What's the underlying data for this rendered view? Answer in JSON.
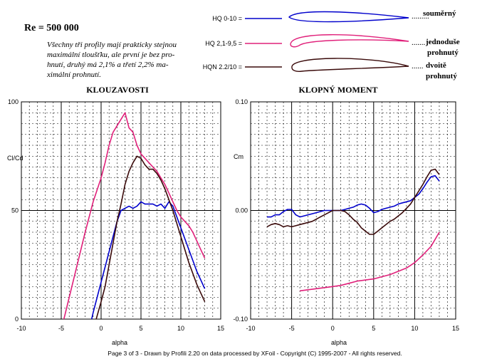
{
  "header": {
    "reynolds": "Re = 500 000",
    "note_lines": [
      "Všechny tři profily mají prakticky stejnou",
      "maximální tloušťku, ale první je bez pro-",
      "hnutí, druhý má 2,1% a třetí 2,2% ma-",
      "ximální prohnutí."
    ]
  },
  "legend": [
    {
      "label": "HQ 0-10 =",
      "color": "#0000cc",
      "desc_lines": [
        "souměrný"
      ]
    },
    {
      "label": "HQ 2,1-9,5 =",
      "color": "#e0207a",
      "desc_lines": [
        "jednoduše",
        "prohnutý"
      ]
    },
    {
      "label": "HQN 2.2/10 =",
      "color": "#3a0a0a",
      "desc_lines": [
        "dvoitě",
        "prohnutý"
      ]
    }
  ],
  "footer": "Page 3 of 3   -   Drawn by Profili 2.20 on data processed by  XFoil - Copyright (C) 1995-2007 - All rights reserved.",
  "chart_data": [
    {
      "type": "line",
      "title": "KLOUZAVOSTI",
      "xlabel": "alpha",
      "ylabel": "Cl/Cd",
      "xlim": [
        -10,
        15
      ],
      "ylim": [
        0,
        100
      ],
      "xticks": [
        "-10",
        "-5",
        "0",
        "5",
        "10",
        "15"
      ],
      "yticks": [
        "0",
        "50",
        "100"
      ],
      "grid": true,
      "series": [
        {
          "color": "#0000cc",
          "x": [
            -1.5,
            -1,
            -0.5,
            0,
            0.5,
            1,
            1.5,
            2,
            2.5,
            3,
            3.5,
            4,
            4.5,
            5,
            5.5,
            6,
            6.5,
            7,
            7.5,
            8,
            8.5,
            9,
            9.5,
            10,
            10.5,
            11,
            11.5,
            12,
            12.5,
            13
          ],
          "y": [
            -5,
            3,
            10,
            17,
            24,
            31,
            38,
            45,
            50,
            51,
            52,
            51,
            52,
            54,
            53,
            53,
            53,
            52,
            53,
            51,
            54,
            52,
            47,
            42,
            37,
            32,
            27,
            22,
            18,
            14
          ]
        },
        {
          "color": "#e0207a",
          "x": [
            -5,
            -4,
            -3,
            -2,
            -1,
            0,
            0.5,
            1,
            1.5,
            2,
            2.5,
            3,
            3.5,
            4,
            4.5,
            5,
            5.5,
            6,
            6.5,
            7,
            7.5,
            8,
            8.5,
            9,
            9.5,
            10,
            10.5,
            11,
            11.5,
            12,
            12.5,
            13
          ],
          "y": [
            -5,
            10,
            25,
            40,
            54,
            65,
            72,
            80,
            86,
            89,
            92,
            95,
            88,
            86,
            80,
            76,
            74,
            72,
            70,
            68,
            65,
            62,
            58,
            54,
            50,
            47,
            45,
            43,
            40,
            36,
            32,
            28
          ]
        },
        {
          "color": "#3a0a0a",
          "x": [
            -1,
            0,
            0.5,
            1,
            1.5,
            2,
            2.5,
            3,
            3.5,
            4,
            4.5,
            5,
            5.5,
            6,
            6.5,
            7,
            7.5,
            8,
            8.5,
            9,
            9.5,
            10,
            10.5,
            11,
            11.5,
            12,
            12.5,
            13
          ],
          "y": [
            -5,
            8,
            15,
            25,
            35,
            45,
            53,
            62,
            68,
            72,
            75,
            74,
            71,
            69,
            69,
            67,
            64,
            60,
            55,
            50,
            44,
            38,
            32,
            26,
            21,
            16,
            12,
            8
          ]
        }
      ]
    },
    {
      "type": "line",
      "title": "KLOPNÝ  MOMENT",
      "xlabel": "alpha",
      "ylabel": "Cm",
      "xlim": [
        -10,
        15
      ],
      "ylim": [
        -0.1,
        0.1
      ],
      "xticks": [
        "-10",
        "-5",
        "0",
        "5",
        "10",
        "15"
      ],
      "yticks": [
        "-0.10",
        "0.00",
        "0.10"
      ],
      "grid": true,
      "series": [
        {
          "color": "#0000cc",
          "x": [
            -8,
            -7.5,
            -7,
            -6.5,
            -6,
            -5.5,
            -5,
            -4.5,
            -4,
            -3.5,
            -3,
            -2.5,
            -2,
            -1.5,
            -1,
            -0.5,
            0,
            0.5,
            1,
            1.5,
            2,
            2.5,
            3,
            3.5,
            4,
            4.5,
            5,
            5.5,
            6,
            6.5,
            7,
            7.5,
            8,
            8.5,
            9,
            9.5,
            10,
            10.5,
            11,
            11.5,
            12,
            12.5,
            13
          ],
          "y": [
            -0.006,
            -0.006,
            -0.004,
            -0.004,
            -0.001,
            0.001,
            0.001,
            -0.004,
            -0.006,
            -0.005,
            -0.004,
            -0.003,
            -0.002,
            -0.001,
            0.0,
            0.0,
            0.0,
            0.0,
            0.0,
            0.001,
            0.002,
            0.003,
            0.005,
            0.006,
            0.005,
            0.002,
            -0.002,
            -0.001,
            0.001,
            0.002,
            0.003,
            0.004,
            0.006,
            0.007,
            0.008,
            0.009,
            0.012,
            0.015,
            0.02,
            0.026,
            0.031,
            0.032,
            0.027
          ]
        },
        {
          "color": "#e0207a",
          "x": [
            -4,
            -3,
            -2,
            -1,
            0,
            1,
            2,
            3,
            4,
            5,
            6,
            7,
            8,
            9,
            10,
            11,
            12,
            13
          ],
          "y": [
            -0.074,
            -0.073,
            -0.072,
            -0.071,
            -0.07,
            -0.069,
            -0.067,
            -0.065,
            -0.064,
            -0.063,
            -0.061,
            -0.059,
            -0.056,
            -0.053,
            -0.048,
            -0.041,
            -0.033,
            -0.02
          ]
        },
        {
          "color": "#3a0a0a",
          "x": [
            -8,
            -7.5,
            -7,
            -6.5,
            -6,
            -5.5,
            -5,
            -4.5,
            -4,
            -3.5,
            -3,
            -2.5,
            -2,
            -1.5,
            -1,
            -0.5,
            0,
            0.5,
            1,
            1.5,
            2,
            2.5,
            3,
            3.5,
            4,
            4.5,
            5,
            5.5,
            6,
            6.5,
            7,
            7.5,
            8,
            8.5,
            9,
            9.5,
            10,
            10.5,
            11,
            11.5,
            12,
            12.5,
            13
          ],
          "y": [
            -0.015,
            -0.013,
            -0.012,
            -0.013,
            -0.015,
            -0.014,
            -0.015,
            -0.014,
            -0.013,
            -0.012,
            -0.011,
            -0.01,
            -0.008,
            -0.006,
            -0.004,
            -0.002,
            0.0,
            0.0,
            0.0,
            -0.001,
            -0.004,
            -0.008,
            -0.011,
            -0.016,
            -0.019,
            -0.022,
            -0.022,
            -0.019,
            -0.016,
            -0.013,
            -0.01,
            -0.008,
            -0.005,
            -0.002,
            0.002,
            0.006,
            0.012,
            0.018,
            0.024,
            0.031,
            0.037,
            0.038,
            0.033
          ]
        }
      ]
    }
  ]
}
